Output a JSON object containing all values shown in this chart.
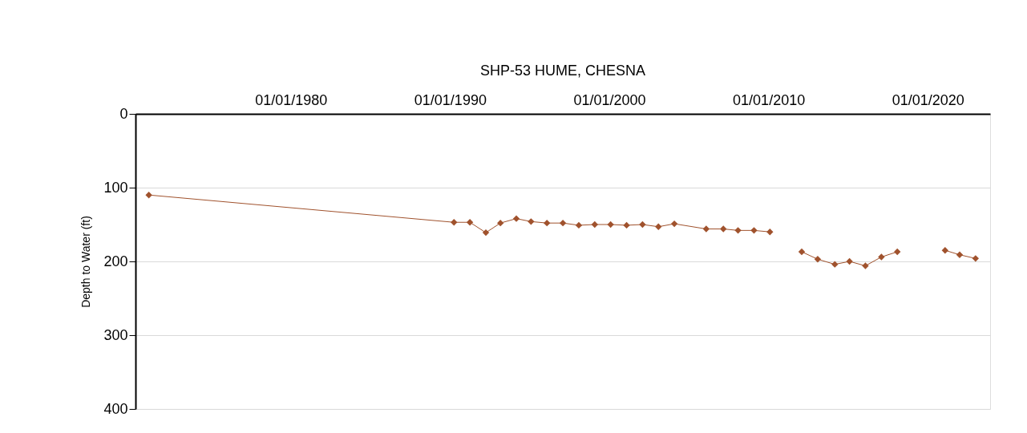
{
  "chart_data": {
    "type": "line",
    "title": "SHP-53  HUME, CHESNA",
    "ylabel": "Depth to Water (ft)",
    "x": [
      "1971-02",
      "1990-04",
      "1991-04",
      "1992-04",
      "1993-03",
      "1994-03",
      "1995-02",
      "1996-02",
      "1997-02",
      "1998-02",
      "1999-02",
      "2000-02",
      "2001-02",
      "2002-02",
      "2003-02",
      "2004-02",
      "2006-02",
      "2007-03",
      "2008-02",
      "2009-02",
      "2010-02",
      "2011-02",
      "2012-02",
      "2013-02",
      "2014-03",
      "2015-02",
      "2016-02",
      "2017-02",
      "2018-02",
      "2019-08",
      "2021-02",
      "2022-01",
      "2023-01"
    ],
    "series": [
      {
        "color": "#a0522d",
        "values": [
          110,
          147,
          147,
          161,
          148,
          142,
          146,
          148,
          148,
          151,
          150,
          150,
          151,
          150,
          153,
          149,
          156,
          156,
          158,
          158,
          160,
          null,
          187,
          197,
          204,
          200,
          206,
          194,
          187,
          null,
          185,
          191,
          196
        ]
      }
    ],
    "xlim": [
      "1970-04",
      "2023-12"
    ],
    "xticks": [
      {
        "value": "1980-01-01",
        "label": "01/01/1980"
      },
      {
        "value": "1990-01-01",
        "label": "01/01/1990"
      },
      {
        "value": "2000-01-01",
        "label": "01/01/2000"
      },
      {
        "value": "2010-01-01",
        "label": "01/01/2010"
      },
      {
        "value": "2020-01-01",
        "label": "01/01/2020"
      }
    ],
    "ylim": [
      400,
      0
    ],
    "yticks": [
      0,
      100,
      200,
      300,
      400
    ],
    "grid": "y",
    "marker": "diamond",
    "line_style": "solid",
    "legend": false
  }
}
